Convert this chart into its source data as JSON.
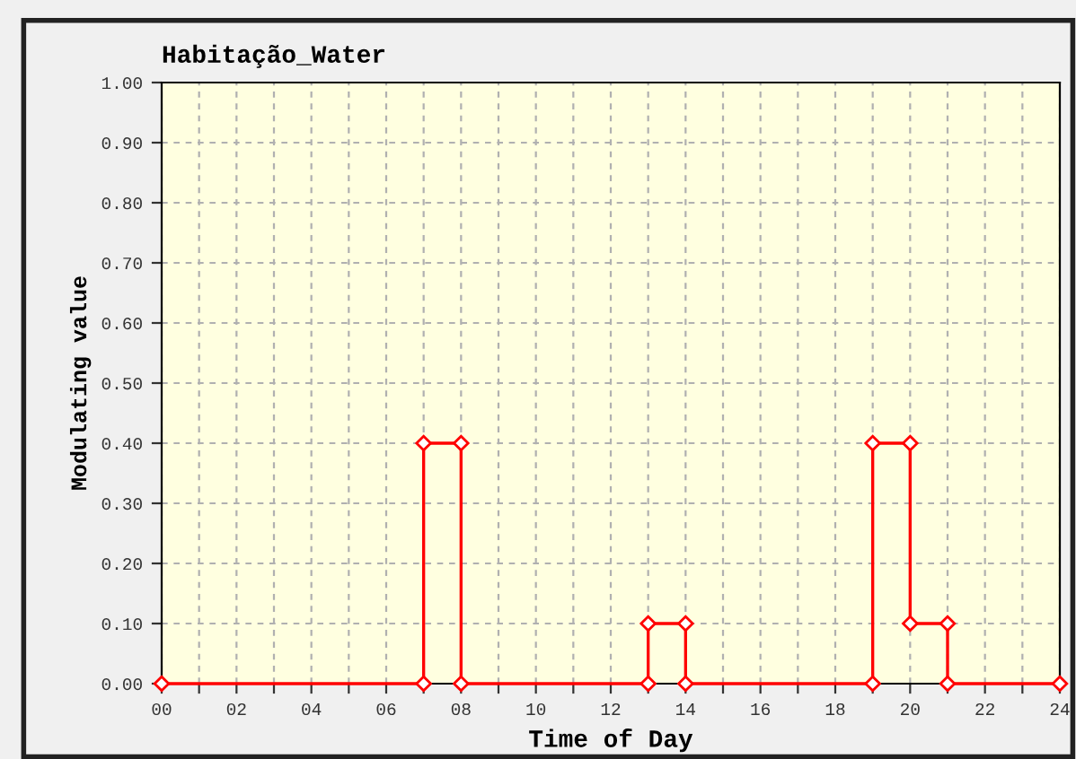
{
  "chart_data": {
    "type": "line",
    "title": "Habitação_Water",
    "xlabel": "Time of Day",
    "ylabel": "Modulating value",
    "series": [
      {
        "color": "#ff0000",
        "x": [
          0,
          7,
          7,
          8,
          8,
          13,
          13,
          14,
          14,
          19,
          19,
          20,
          20,
          21,
          21,
          24
        ],
        "values": [
          0,
          0,
          0.4,
          0.4,
          0,
          0,
          0.1,
          0.1,
          0,
          0,
          0.4,
          0.4,
          0.1,
          0.1,
          0,
          0
        ]
      }
    ],
    "xlim": [
      0,
      24
    ],
    "ylim": [
      0,
      1
    ],
    "xticks": [
      {
        "value": 0,
        "label": "00"
      },
      {
        "value": 1,
        "label": null
      },
      {
        "value": 2,
        "label": "02"
      },
      {
        "value": 3,
        "label": null
      },
      {
        "value": 4,
        "label": "04"
      },
      {
        "value": 5,
        "label": null
      },
      {
        "value": 6,
        "label": "06"
      },
      {
        "value": 7,
        "label": null
      },
      {
        "value": 8,
        "label": "08"
      },
      {
        "value": 9,
        "label": null
      },
      {
        "value": 10,
        "label": "10"
      },
      {
        "value": 11,
        "label": null
      },
      {
        "value": 12,
        "label": "12"
      },
      {
        "value": 13,
        "label": null
      },
      {
        "value": 14,
        "label": "14"
      },
      {
        "value": 15,
        "label": null
      },
      {
        "value": 16,
        "label": "16"
      },
      {
        "value": 17,
        "label": null
      },
      {
        "value": 18,
        "label": "18"
      },
      {
        "value": 19,
        "label": null
      },
      {
        "value": 20,
        "label": "20"
      },
      {
        "value": 21,
        "label": null
      },
      {
        "value": 22,
        "label": "22"
      },
      {
        "value": 23,
        "label": null
      },
      {
        "value": 24,
        "label": "24"
      }
    ],
    "yticks": [
      {
        "value": 0,
        "label": "0.00"
      },
      {
        "value": 0.1,
        "label": "0.10"
      },
      {
        "value": 0.2,
        "label": "0.20"
      },
      {
        "value": 0.3,
        "label": "0.30"
      },
      {
        "value": 0.4,
        "label": "0.40"
      },
      {
        "value": 0.5,
        "label": "0.50"
      },
      {
        "value": 0.6,
        "label": "0.60"
      },
      {
        "value": 0.7,
        "label": "0.70"
      },
      {
        "value": 0.8,
        "label": "0.80"
      },
      {
        "value": 0.9,
        "label": "0.90"
      },
      {
        "value": 1,
        "label": "1.00"
      }
    ],
    "grid": true,
    "marker": "diamond",
    "line_style": "solid",
    "legend": false
  }
}
